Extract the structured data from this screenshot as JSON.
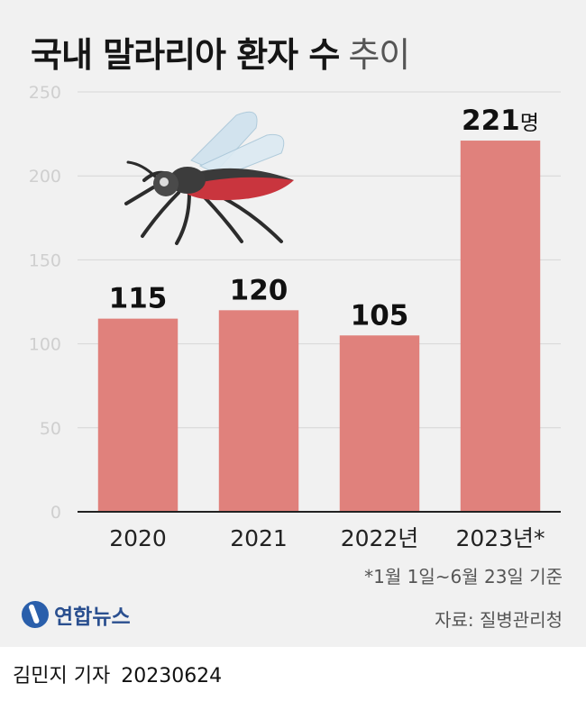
{
  "title": {
    "main": "국내 말라리아 환자 수",
    "sub": "추이"
  },
  "colors": {
    "bar": "#e0817c",
    "background": "#f1f1f1",
    "grid": "#d6d6d6",
    "axis": "#222222"
  },
  "chart_data": {
    "type": "bar",
    "title": "국내 말라리아 환자 수 추이",
    "categories": [
      "2020",
      "2021",
      "2022년",
      "2023년*"
    ],
    "values": [
      115,
      120,
      105,
      221
    ],
    "value_labels": [
      "115",
      "120",
      "105",
      "221"
    ],
    "last_value_unit": "명",
    "ylim": [
      0,
      250
    ],
    "yticks": [
      0,
      50,
      100,
      150,
      200,
      250
    ],
    "grid": true,
    "xlabel": "",
    "ylabel": ""
  },
  "note": "*1월 1일~6월 23일 기준",
  "source": "자료: 질병관리청",
  "logo": {
    "text": "연합뉴스"
  },
  "illustration": {
    "icon": "mosquito-icon"
  },
  "byline": {
    "author": "김민지 기자",
    "date": "20230624"
  }
}
